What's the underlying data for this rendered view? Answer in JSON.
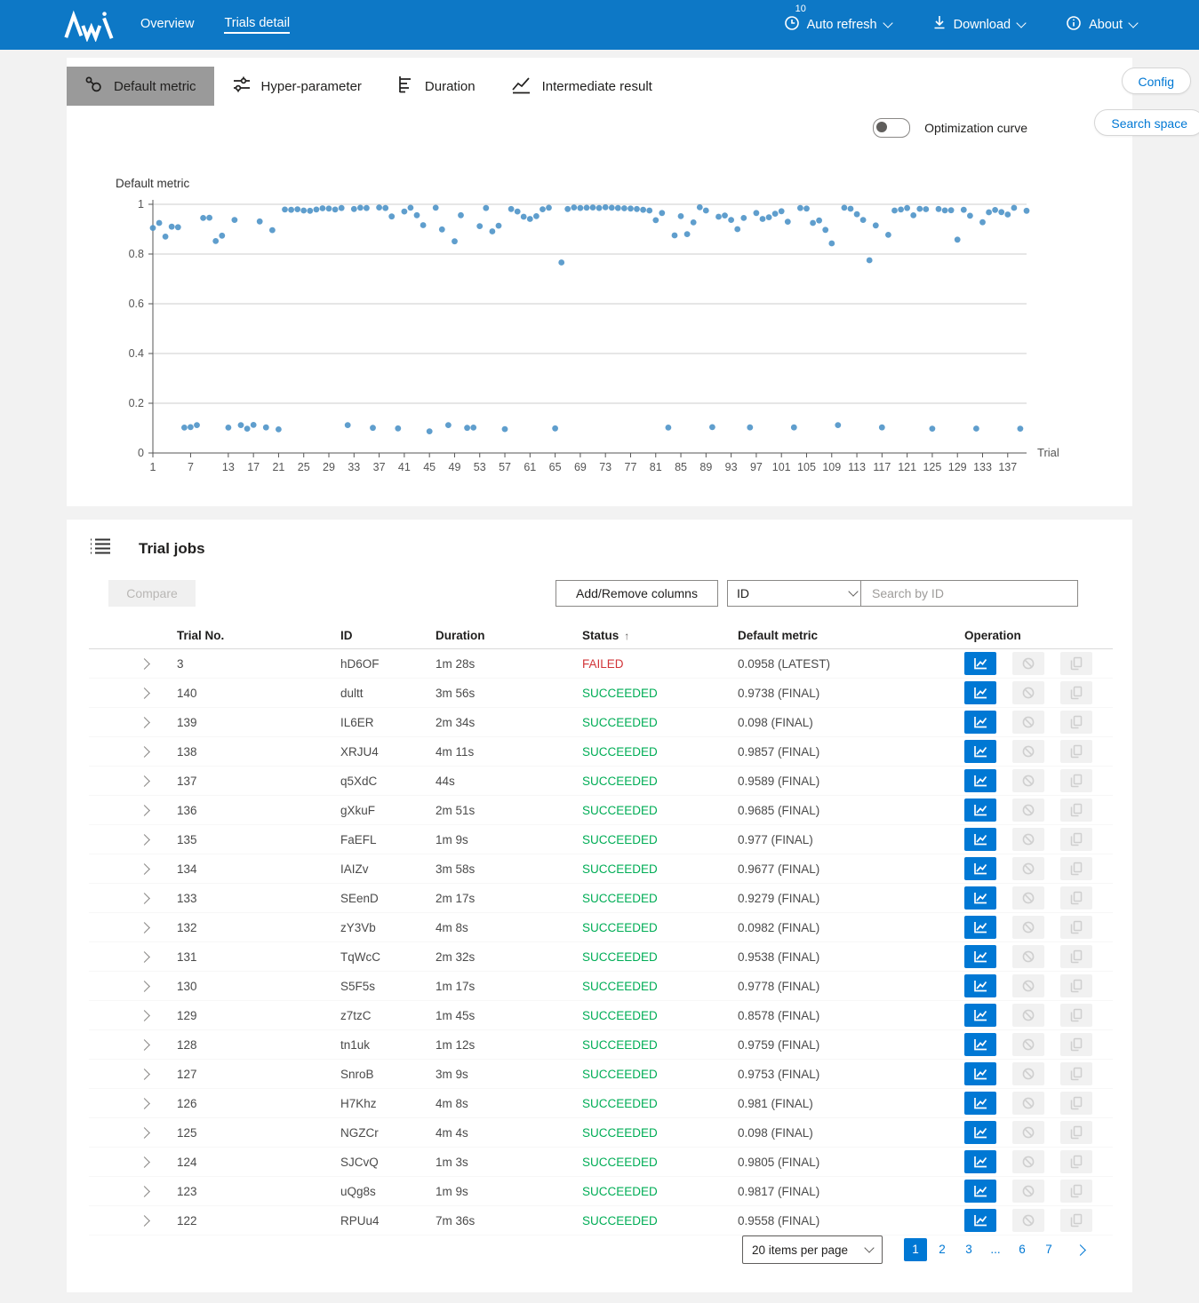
{
  "colors": {
    "accent": "#0078d4",
    "topbar": "#0d78c6",
    "point": "#4e94c8",
    "succeeded": "#00ad56",
    "failed": "#d13438",
    "selected_tab_bg": "#9a9a9a"
  },
  "header": {
    "overview": "Overview",
    "trials_detail": "Trials detail",
    "auto_refresh": {
      "label": "Auto refresh",
      "badge": "10"
    },
    "download_label": "Download",
    "about_label": "About"
  },
  "toolbar": {
    "tabs": {
      "default_metric": "Default metric",
      "hyper_parameter": "Hyper-parameter",
      "duration": "Duration",
      "intermediate_result": "Intermediate result"
    },
    "config": "Config",
    "search_space": "Search space",
    "optimization_curve": "Optimization curve"
  },
  "chart_data": {
    "type": "scatter",
    "title": "Default metric",
    "xlabel": "Trial",
    "ylim": [
      0,
      1
    ],
    "y_ticks": [
      0,
      0.2,
      0.4,
      0.6,
      0.8,
      1
    ],
    "x_tick_labels": [
      "1",
      "7",
      "13",
      "17",
      "21",
      "25",
      "29",
      "33",
      "37",
      "41",
      "45",
      "49",
      "53",
      "57",
      "61",
      "65",
      "69",
      "73",
      "77",
      "81",
      "85",
      "89",
      "93",
      "97",
      "101",
      "105",
      "109",
      "113",
      "117",
      "121",
      "125",
      "129",
      "133",
      "137"
    ],
    "grid": true,
    "values": [
      0.905,
      0.925,
      0.87,
      0.91,
      0.908,
      0.102,
      0.104,
      0.112,
      0.945,
      0.946,
      0.852,
      0.874,
      0.102,
      0.937,
      0.112,
      0.098,
      0.113,
      0.931,
      0.103,
      0.896,
      0.095,
      0.979,
      0.978,
      0.98,
      0.975,
      0.974,
      0.979,
      0.984,
      0.983,
      0.979,
      0.985,
      0.112,
      0.981,
      0.986,
      0.985,
      0.101,
      0.987,
      0.985,
      0.951,
      0.099,
      0.971,
      0.986,
      0.956,
      0.916,
      0.087,
      0.986,
      0.899,
      0.112,
      0.851,
      0.956,
      0.101,
      0.102,
      0.912,
      0.985,
      0.891,
      0.914,
      0.096,
      0.981,
      0.971,
      0.95,
      0.941,
      0.952,
      0.98,
      0.986,
      0.099,
      0.766,
      0.981,
      0.987,
      0.985,
      0.986,
      0.987,
      0.985,
      0.988,
      0.986,
      0.985,
      0.984,
      0.983,
      0.981,
      0.978,
      0.975,
      0.936,
      0.965,
      0.102,
      0.875,
      0.952,
      0.88,
      0.927,
      0.988,
      0.975,
      0.104,
      0.95,
      0.955,
      0.937,
      0.9,
      0.945,
      0.103,
      0.965,
      0.941,
      0.948,
      0.962,
      0.972,
      0.93,
      0.103,
      0.985,
      0.983,
      0.925,
      0.935,
      0.897,
      0.843,
      0.112,
      0.986,
      0.982,
      0.96,
      0.937,
      0.775,
      0.915,
      0.103,
      0.877,
      0.975,
      0.979,
      0.985,
      0.9558,
      0.9817,
      0.9805,
      0.098,
      0.981,
      0.9753,
      0.9759,
      0.8578,
      0.9778,
      0.9538,
      0.0982,
      0.9279,
      0.9677,
      0.977,
      0.9685,
      0.9589,
      0.9857,
      0.098,
      0.9738
    ]
  },
  "trial_jobs": {
    "title": "Trial jobs",
    "compare": "Compare",
    "add_remove_columns": "Add/Remove columns",
    "filter_selected": "ID",
    "search_placeholder": "Search by ID",
    "columns": [
      "Trial No.",
      "ID",
      "Duration",
      "Status",
      "Default metric",
      "Operation"
    ],
    "sort_column": "Status",
    "sort_direction": "asc",
    "rows": [
      {
        "no": "3",
        "id": "hD6OF",
        "duration": "1m 28s",
        "status": "FAILED",
        "metric": "0.0958 (LATEST)"
      },
      {
        "no": "140",
        "id": "dultt",
        "duration": "3m 56s",
        "status": "SUCCEEDED",
        "metric": "0.9738 (FINAL)"
      },
      {
        "no": "139",
        "id": "IL6ER",
        "duration": "2m 34s",
        "status": "SUCCEEDED",
        "metric": "0.098 (FINAL)"
      },
      {
        "no": "138",
        "id": "XRJU4",
        "duration": "4m 11s",
        "status": "SUCCEEDED",
        "metric": "0.9857 (FINAL)"
      },
      {
        "no": "137",
        "id": "q5XdC",
        "duration": "44s",
        "status": "SUCCEEDED",
        "metric": "0.9589 (FINAL)"
      },
      {
        "no": "136",
        "id": "gXkuF",
        "duration": "2m 51s",
        "status": "SUCCEEDED",
        "metric": "0.9685 (FINAL)"
      },
      {
        "no": "135",
        "id": "FaEFL",
        "duration": "1m 9s",
        "status": "SUCCEEDED",
        "metric": "0.977 (FINAL)"
      },
      {
        "no": "134",
        "id": "IAIZv",
        "duration": "3m 58s",
        "status": "SUCCEEDED",
        "metric": "0.9677 (FINAL)"
      },
      {
        "no": "133",
        "id": "SEenD",
        "duration": "2m 17s",
        "status": "SUCCEEDED",
        "metric": "0.9279 (FINAL)"
      },
      {
        "no": "132",
        "id": "zY3Vb",
        "duration": "4m 8s",
        "status": "SUCCEEDED",
        "metric": "0.0982 (FINAL)"
      },
      {
        "no": "131",
        "id": "TqWcC",
        "duration": "2m 32s",
        "status": "SUCCEEDED",
        "metric": "0.9538 (FINAL)"
      },
      {
        "no": "130",
        "id": "S5F5s",
        "duration": "1m 17s",
        "status": "SUCCEEDED",
        "metric": "0.9778 (FINAL)"
      },
      {
        "no": "129",
        "id": "z7tzC",
        "duration": "1m 45s",
        "status": "SUCCEEDED",
        "metric": "0.8578 (FINAL)"
      },
      {
        "no": "128",
        "id": "tn1uk",
        "duration": "1m 12s",
        "status": "SUCCEEDED",
        "metric": "0.9759 (FINAL)"
      },
      {
        "no": "127",
        "id": "SnroB",
        "duration": "3m 9s",
        "status": "SUCCEEDED",
        "metric": "0.9753 (FINAL)"
      },
      {
        "no": "126",
        "id": "H7Khz",
        "duration": "4m 8s",
        "status": "SUCCEEDED",
        "metric": "0.981 (FINAL)"
      },
      {
        "no": "125",
        "id": "NGZCr",
        "duration": "4m 4s",
        "status": "SUCCEEDED",
        "metric": "0.098 (FINAL)"
      },
      {
        "no": "124",
        "id": "SJCvQ",
        "duration": "1m 3s",
        "status": "SUCCEEDED",
        "metric": "0.9805 (FINAL)"
      },
      {
        "no": "123",
        "id": "uQg8s",
        "duration": "1m 9s",
        "status": "SUCCEEDED",
        "metric": "0.9817 (FINAL)"
      },
      {
        "no": "122",
        "id": "RPUu4",
        "duration": "7m 36s",
        "status": "SUCCEEDED",
        "metric": "0.9558 (FINAL)"
      }
    ],
    "pagination": {
      "items_per_page": "20 items per page",
      "pages": [
        "1",
        "2",
        "3",
        "...",
        "6",
        "7"
      ],
      "current": "1"
    }
  }
}
